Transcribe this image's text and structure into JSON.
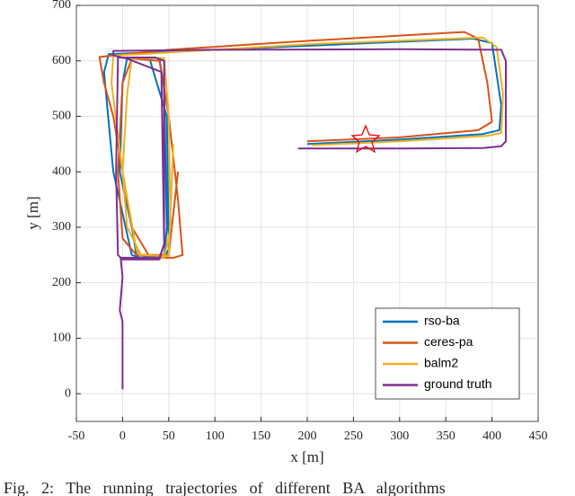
{
  "chart_data": {
    "type": "line",
    "xlabel": "x [m]",
    "ylabel": "y [m]",
    "xlim": [
      -50,
      450
    ],
    "ylim": [
      -50,
      700
    ],
    "xticks": [
      -50,
      0,
      50,
      100,
      150,
      200,
      250,
      300,
      350,
      400,
      450
    ],
    "yticks": [
      0,
      100,
      200,
      300,
      400,
      500,
      600,
      700
    ],
    "grid": true,
    "legend": "lower right",
    "caption": "Fig. 2: The running trajectories of different BA algorithms",
    "series": [
      {
        "name": "rso-ba",
        "color": "#0072bd",
        "x": [
          200,
          300,
          390,
          408,
          410,
          400,
          380,
          100,
          -15,
          -20,
          -10,
          10,
          20,
          45,
          48,
          45,
          40,
          5,
          0,
          -3,
          10,
          15,
          45,
          50,
          48,
          30
        ],
        "values": [
          450,
          458,
          468,
          475,
          520,
          632,
          640,
          620,
          612,
          580,
          400,
          250,
          245,
          245,
          300,
          550,
          605,
          605,
          560,
          400,
          300,
          250,
          245,
          260,
          500,
          600
        ]
      },
      {
        "name": "ceres-pa",
        "color": "#d95319",
        "x": [
          200,
          300,
          385,
          400,
          395,
          385,
          370,
          200,
          50,
          -25,
          -20,
          -10,
          0,
          10,
          30,
          55,
          65,
          60,
          50,
          40,
          10,
          0,
          -5,
          0,
          15,
          50,
          60
        ],
        "values": [
          455,
          462,
          475,
          490,
          560,
          640,
          652,
          636,
          620,
          607,
          560,
          500,
          400,
          300,
          245,
          245,
          250,
          350,
          500,
          600,
          604,
          560,
          400,
          280,
          250,
          250,
          400
        ]
      },
      {
        "name": "balm2",
        "color": "#edb120",
        "x": [
          205,
          300,
          395,
          410,
          412,
          405,
          390,
          200,
          20,
          -10,
          -12,
          0,
          15,
          20,
          45,
          52,
          50,
          45,
          10,
          5,
          0,
          5,
          20,
          50,
          55
        ],
        "values": [
          448,
          455,
          465,
          470,
          540,
          625,
          642,
          630,
          612,
          610,
          560,
          400,
          260,
          245,
          245,
          300,
          500,
          605,
          605,
          540,
          400,
          300,
          250,
          248,
          450
        ]
      },
      {
        "name": "ground truth",
        "color": "#7e2f8e",
        "x": [
          0,
          0,
          -3,
          0,
          -2,
          40,
          45,
          45,
          35,
          -5,
          -7,
          -5,
          0,
          40,
          45,
          42,
          5,
          -10,
          -10,
          100,
          300,
          410,
          415,
          415,
          410,
          390,
          300,
          190
        ],
        "values": [
          8,
          130,
          150,
          210,
          245,
          245,
          270,
          600,
          606,
          606,
          400,
          250,
          242,
          242,
          270,
          580,
          604,
          610,
          618,
          620,
          621,
          620,
          600,
          455,
          446,
          443,
          442,
          442
        ]
      }
    ]
  }
}
